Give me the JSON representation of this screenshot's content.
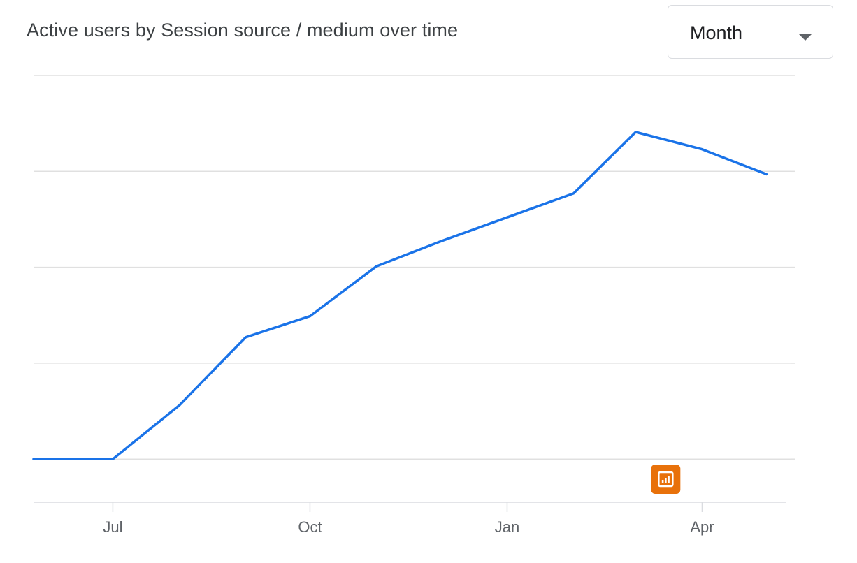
{
  "header": {
    "title": "Active users by Session source / medium over time"
  },
  "period_select": {
    "selected": "Month",
    "icon": "dropdown-caret-icon"
  },
  "annotation": {
    "icon": "insights-annotation-icon",
    "color": "#e8710a",
    "at_x": "2024-03-15"
  },
  "colors": {
    "line": "#1a73e8",
    "grid": "#e0e0e0",
    "tick_text": "#5f6368",
    "annotation": "#e8710a"
  },
  "chart_data": {
    "type": "line",
    "title": "Active users by Session source / medium over time",
    "xlabel": "",
    "ylabel": "",
    "y_tick_labels_visible": false,
    "grid": true,
    "legend": "none",
    "x_tick_labels": [
      "Jul",
      "Oct",
      "Jan",
      "Apr"
    ],
    "x_ticks": [
      "2023-07-01",
      "2023-10-01",
      "2024-01-01",
      "2024-04-01"
    ],
    "xlim": [
      "2023-05-25",
      "2024-05-10"
    ],
    "ylim": [
      -0.45,
      4
    ],
    "series": [
      {
        "points": [
          {
            "x": "2023-05-25",
            "y": 0
          },
          {
            "x": "2023-07-01",
            "y": 0
          },
          {
            "x": "2023-08-01",
            "y": 0.56
          },
          {
            "x": "2023-09-01",
            "y": 1.27
          },
          {
            "x": "2023-10-01",
            "y": 1.49
          },
          {
            "x": "2023-11-01",
            "y": 2.01
          },
          {
            "x": "2023-12-01",
            "y": 2.27
          },
          {
            "x": "2024-01-01",
            "y": 2.52
          },
          {
            "x": "2024-02-01",
            "y": 2.77
          },
          {
            "x": "2024-03-01",
            "y": 3.41
          },
          {
            "x": "2024-04-01",
            "y": 3.23
          },
          {
            "x": "2024-05-01",
            "y": 2.97
          }
        ]
      }
    ]
  }
}
